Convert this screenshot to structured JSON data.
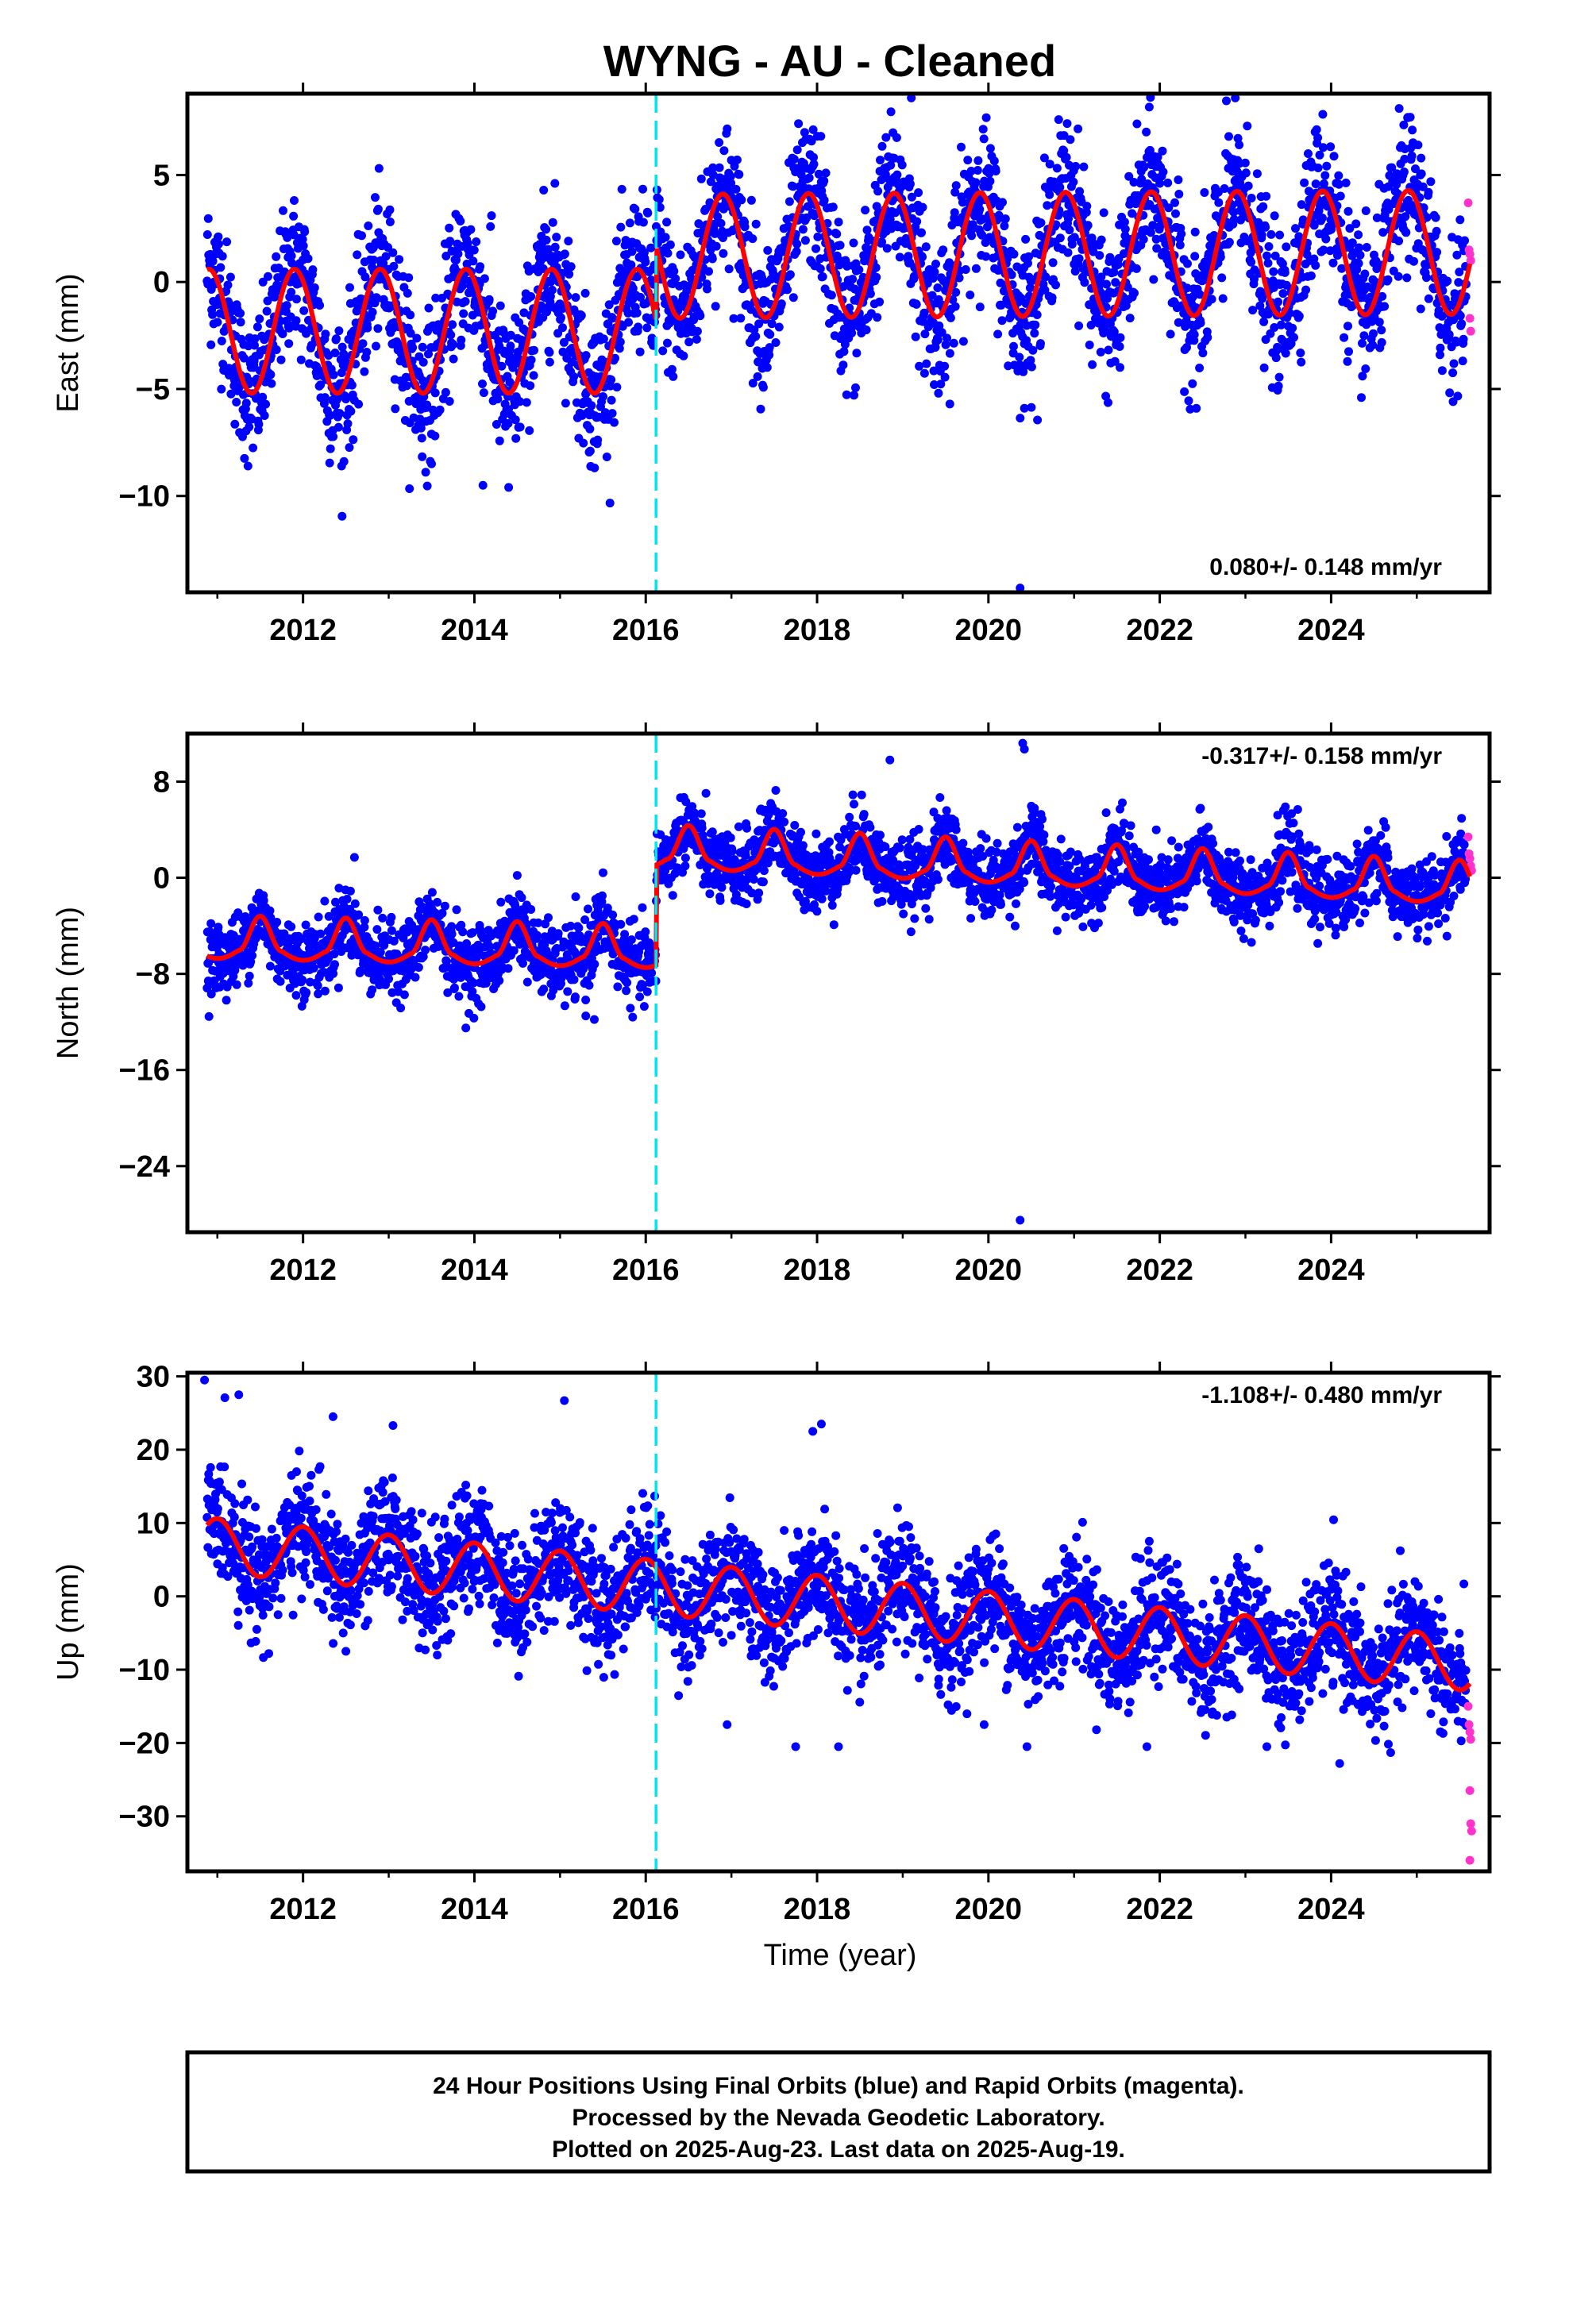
{
  "title": "WYNG  - AU - Cleaned",
  "xlabel": "Time (year)",
  "footer": [
    "24 Hour Positions Using Final Orbits (blue) and Rapid Orbits (magenta).",
    "Processed by the Nevada Geodetic Laboratory.",
    "Plotted on 2025-Aug-23. Last data on 2025-Aug-19."
  ],
  "colors": {
    "final": "#0000ff",
    "rapid": "#ff33cc",
    "model": "#ff0000",
    "event": "#00e5ee"
  },
  "chart_data": [
    {
      "type": "scatter",
      "ylabel": "East (mm)",
      "rate": "0.080+/- 0.148 mm/yr",
      "xlim": [
        2010.65,
        2025.85
      ],
      "ylim": [
        -14.5,
        8.8
      ],
      "yticks": [
        5,
        0,
        -5,
        -10
      ],
      "xticks": [
        2012,
        2014,
        2016,
        2018,
        2020,
        2022,
        2024
      ],
      "event_line_x": 2016.12,
      "model": {
        "offset": [
          0,
          0,
          -0.2,
          0.2,
          -0.3,
          0.1,
          0.9,
          1.1,
          1.2,
          1.3,
          1.4,
          1.4,
          1.5,
          1.6,
          1.6,
          1.7
        ],
        "amplitude": 2.9,
        "step_x": 2016.12,
        "step_size": 2.6
      },
      "scatter_sigma": 1.7,
      "rapid_points": [
        [
          2025.6,
          3.7
        ],
        [
          2025.61,
          1.5
        ],
        [
          2025.62,
          1.3
        ],
        [
          2025.63,
          1.0
        ],
        [
          2025.62,
          -1.7
        ],
        [
          2025.63,
          -2.3
        ]
      ],
      "outliers": [
        [
          2019.1,
          8.6
        ],
        [
          2020.37,
          -14.3
        ],
        [
          2019.55,
          -5.7
        ],
        [
          2020.42,
          -5.9
        ],
        [
          2014.1,
          -9.5
        ],
        [
          2014.4,
          -9.6
        ],
        [
          2012.45,
          -8.6
        ],
        [
          2013.5,
          -8.5
        ],
        [
          2014.2,
          3.1
        ]
      ]
    },
    {
      "type": "scatter",
      "ylabel": "North (mm)",
      "rate": "-0.317+/- 0.158 mm/yr",
      "xlim": [
        2010.65,
        2025.85
      ],
      "ylim": [
        -29.5,
        12.0
      ],
      "yticks": [
        8,
        0,
        -8,
        -16,
        -24
      ],
      "xticks": [
        2012,
        2014,
        2016,
        2018,
        2020,
        2022,
        2024
      ],
      "event_line_x": 2016.12,
      "model": {
        "pre_offset": -6.0,
        "post_offset": 1.6,
        "trend": -0.32,
        "amplitude": 1.8,
        "step_x": 2016.12
      },
      "scatter_sigma": 1.5,
      "rapid_points": [
        [
          2025.6,
          3.4
        ],
        [
          2025.61,
          2.0
        ],
        [
          2025.62,
          1.6
        ],
        [
          2025.63,
          1.0
        ],
        [
          2025.64,
          0.6
        ]
      ],
      "outliers": [
        [
          2020.4,
          11.2
        ],
        [
          2020.42,
          10.7
        ],
        [
          2018.85,
          9.8
        ],
        [
          2020.37,
          -28.5
        ],
        [
          2014.5,
          0.2
        ],
        [
          2012.6,
          1.7
        ],
        [
          2013.9,
          -12.5
        ],
        [
          2015.3,
          -11.5
        ],
        [
          2015.4,
          -11.8
        ]
      ]
    },
    {
      "type": "scatter",
      "ylabel": "Up (mm)",
      "rate": "-1.108+/- 0.480 mm/yr",
      "xlim": [
        2010.65,
        2025.85
      ],
      "ylim": [
        -37.5,
        30.5
      ],
      "yticks": [
        30,
        20,
        10,
        0,
        -10,
        -20,
        -30
      ],
      "xticks": [
        2012,
        2014,
        2016,
        2018,
        2020,
        2022,
        2024
      ],
      "event_line_x": 2016.12,
      "model": {
        "offset0": 7.0,
        "trend": -1.1,
        "amplitude": 3.7
      },
      "scatter_sigma": 4.0,
      "rapid_points": [
        [
          2025.6,
          -15.0
        ],
        [
          2025.61,
          -17.5
        ],
        [
          2025.62,
          -18.5
        ],
        [
          2025.63,
          -19.5
        ],
        [
          2025.62,
          -26.5
        ],
        [
          2025.63,
          -31.0
        ],
        [
          2025.64,
          -32.0
        ],
        [
          2025.62,
          -36.0
        ]
      ],
      "outliers": [
        [
          2010.85,
          29.5
        ],
        [
          2011.25,
          27.5
        ],
        [
          2012.35,
          24.5
        ],
        [
          2013.05,
          23.3
        ],
        [
          2015.05,
          26.7
        ],
        [
          2018.05,
          23.5
        ],
        [
          2017.95,
          22.5
        ],
        [
          2016.95,
          -17.5
        ],
        [
          2017.75,
          -20.5
        ],
        [
          2018.25,
          -20.5
        ],
        [
          2019.95,
          -17.5
        ],
        [
          2020.45,
          -20.5
        ],
        [
          2021.85,
          -20.5
        ],
        [
          2024.1,
          -22.8
        ],
        [
          2023.25,
          -20.5
        ]
      ]
    }
  ]
}
